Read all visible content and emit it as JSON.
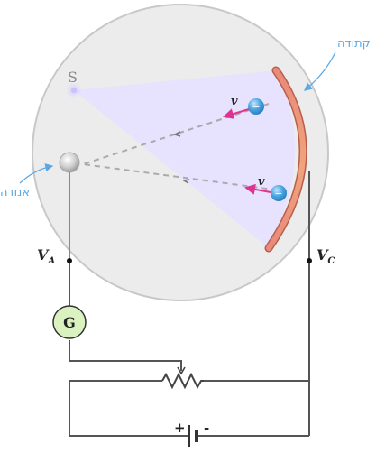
{
  "labels": {
    "source": "S",
    "cathode": "קתודה",
    "anode": "אנודה",
    "voltage_anode_main": "V",
    "voltage_anode_sub": "A",
    "voltage_cathode_main": "V",
    "voltage_cathode_sub": "C",
    "galvanometer": "G",
    "velocity_1": "v",
    "velocity_2": "v",
    "electron_1": "−",
    "electron_2": "−",
    "battery_plus": "+",
    "battery_minus": "-"
  },
  "colors": {
    "tube_fill": "#ececec",
    "tube_stroke": "#c8c8c8",
    "light_cone": "#e7e1ff",
    "cathode": "#e8907a",
    "electron": "#4aa3df",
    "velocity_arrow": "#e0338f",
    "galvanometer_fill": "#d9f2c0",
    "callout": "#5aa9e6",
    "wire": "#555555"
  }
}
